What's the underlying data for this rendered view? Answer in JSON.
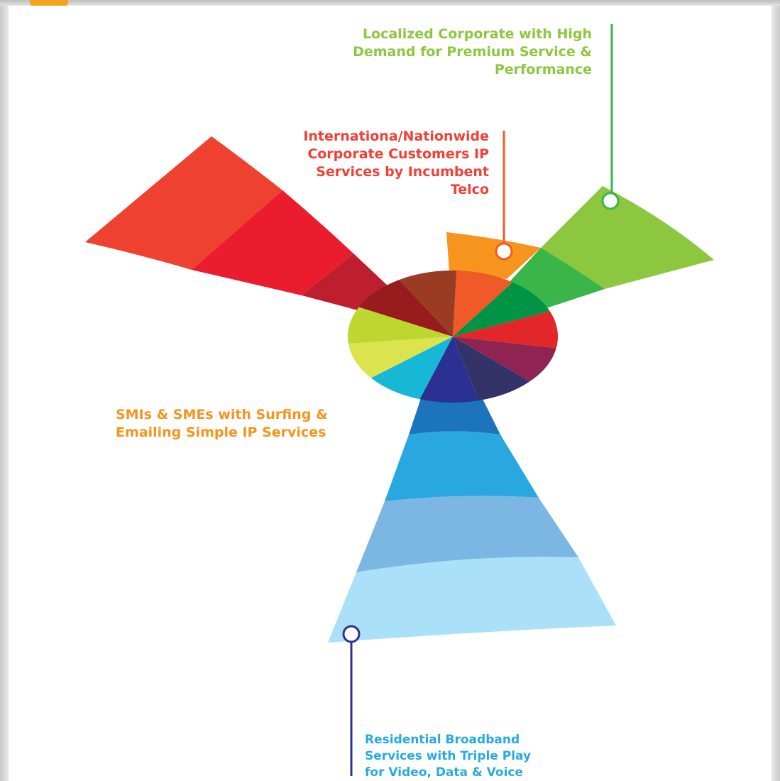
{
  "colors": {
    "green_label": "#8dc63f",
    "red_label": "#ef4136",
    "orange_label": "#f7941d",
    "blue_label": "#27aae1",
    "green_line": "#39b54a",
    "red_line": "#f15a29",
    "blue_line": "#2e3192"
  },
  "labels": {
    "green": "Localized Corporate with High\nDemand for Premium Service &\nPerformance",
    "red": "Internationa/Nationwide\nCorporate Customers IP\nServices by Incumbent\nTelco",
    "orange": "SMIs & SMEs with Surfing &\nEmailing Simple IP Services",
    "blue": "Residential Broadband\nServices with Triple Play\nfor Video, Data & Voice"
  },
  "wheel": {
    "segments": [
      {
        "name": "wheel-segment-orange",
        "color": "#f05a28"
      },
      {
        "name": "wheel-segment-dark-green",
        "color": "#009444"
      },
      {
        "name": "wheel-segment-red",
        "color": "#e12729"
      },
      {
        "name": "wheel-segment-plum",
        "color": "#8f2452"
      },
      {
        "name": "wheel-segment-navy",
        "color": "#33336a"
      },
      {
        "name": "wheel-segment-indigo",
        "color": "#2b3192"
      },
      {
        "name": "wheel-segment-cyan",
        "color": "#16b8d6"
      },
      {
        "name": "wheel-segment-yellow",
        "color": "#dbe34f"
      },
      {
        "name": "wheel-segment-lime",
        "color": "#bed630"
      },
      {
        "name": "wheel-segment-dark-red",
        "color": "#981b1e"
      },
      {
        "name": "wheel-segment-brown",
        "color": "#9a3b23"
      }
    ]
  },
  "wedges": [
    {
      "name": "wedge-red",
      "bands": [
        {
          "name": "wedge-red-band-4",
          "color": "#ef4130"
        },
        {
          "name": "wedge-red-band-3",
          "color": "#ea1c2d"
        },
        {
          "name": "wedge-red-band-2",
          "color": "#be1e2d"
        }
      ]
    },
    {
      "name": "wedge-orange",
      "bands": [
        {
          "name": "wedge-orange-band-2",
          "color": "#f7941d"
        }
      ]
    },
    {
      "name": "wedge-green",
      "bands": [
        {
          "name": "wedge-green-band-3",
          "color": "#8dc63f"
        },
        {
          "name": "wedge-green-band-2",
          "color": "#39b54a"
        }
      ]
    },
    {
      "name": "wedge-blue",
      "bands": [
        {
          "name": "wedge-blue-band-5",
          "color": "#abe0f9"
        },
        {
          "name": "wedge-blue-band-4",
          "color": "#7cb7e3"
        },
        {
          "name": "wedge-blue-band-3",
          "color": "#29a8e0"
        },
        {
          "name": "wedge-blue-band-2",
          "color": "#1c75bc"
        }
      ]
    }
  ]
}
